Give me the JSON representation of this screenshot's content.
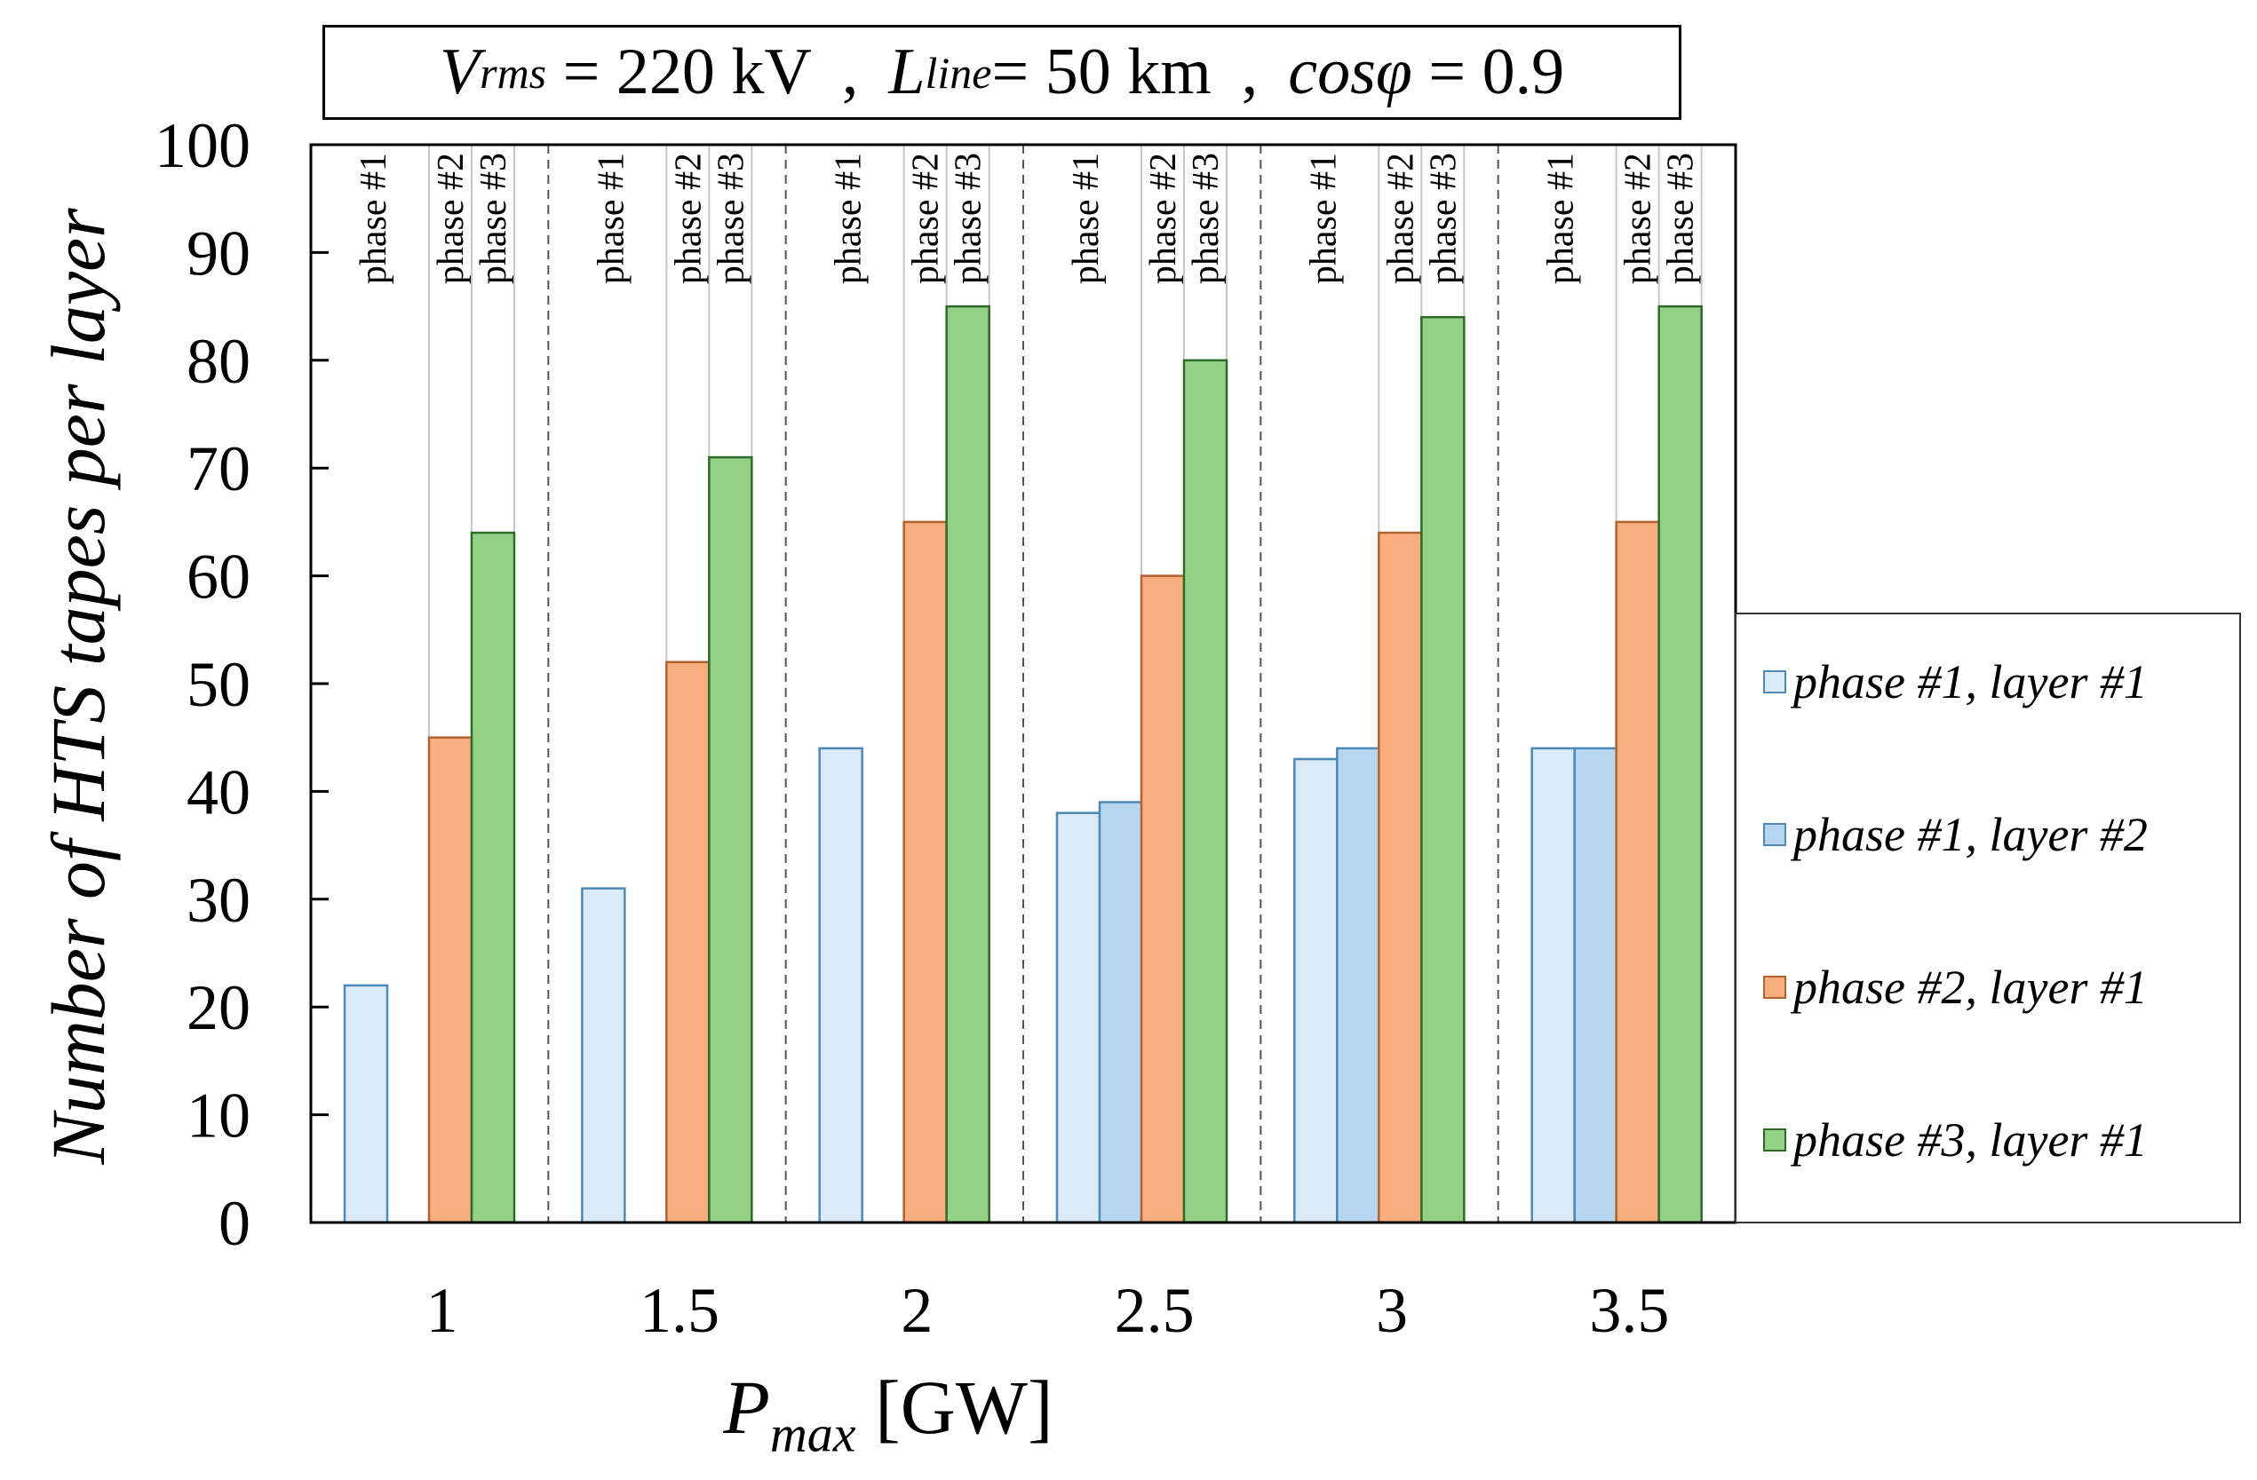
{
  "chart_data": {
    "type": "bar",
    "title": {
      "v_label": "V",
      "v_sub": "rms",
      "v_value": "= 220 kV",
      "sep1": ",",
      "l_label": "L",
      "l_sub": "line",
      "l_value": "= 50 km",
      "sep2": ",",
      "cos_label": "cosφ",
      "cos_value": "= 0.9"
    },
    "xlabel": {
      "symbol": "P",
      "sub": "max",
      "unit": "[GW]"
    },
    "ylabel": "Number of HTS tapes per layer",
    "ylim": [
      0,
      100
    ],
    "yticks": [
      "0",
      "10",
      "20",
      "30",
      "40",
      "50",
      "60",
      "70",
      "80",
      "90",
      "100"
    ],
    "categories": [
      "1",
      "1.5",
      "2",
      "2.5",
      "3",
      "3.5"
    ],
    "slot_labels": [
      "phase #1",
      "phase #2",
      "phase #3"
    ],
    "series": [
      {
        "name": "phase #1, layer #1",
        "color": "#daeaf7",
        "values": [
          22,
          31,
          44,
          38,
          43,
          44
        ]
      },
      {
        "name": "phase #1, layer #2",
        "color": "#b5d6ee",
        "values": [
          null,
          null,
          null,
          39,
          44,
          44
        ]
      },
      {
        "name": "phase #2, layer #1",
        "color": "#f8ae7e",
        "values": [
          45,
          52,
          65,
          60,
          64,
          65
        ]
      },
      {
        "name": "phase #3, layer #1",
        "color": "#93d186",
        "values": [
          64,
          71,
          85,
          80,
          84,
          85
        ]
      }
    ],
    "bar_stroke": {
      "phase1": "#4e88b4",
      "phase2": "#b2622f",
      "phase3": "#2f6a2a"
    },
    "legend_position": "right"
  }
}
